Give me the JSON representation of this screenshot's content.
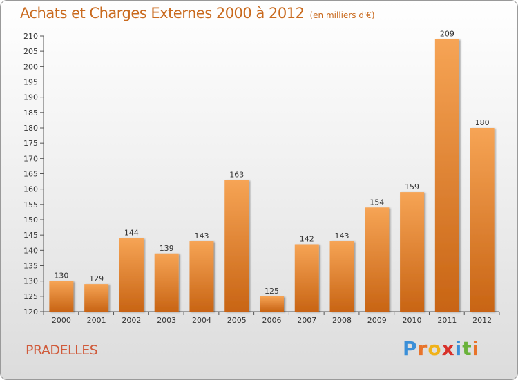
{
  "header": {
    "title": "Achats et Charges Externes 2000 à 2012",
    "unit": "(en milliers d'€)"
  },
  "footer": {
    "commune": "PRADELLES",
    "logo_letters": [
      "P",
      "r",
      "o",
      "x",
      "i",
      "t",
      "i"
    ],
    "logo_colors": [
      "#3a8fd8",
      "#e8732a",
      "#f0b21a",
      "#d8312a",
      "#3a8fd8",
      "#6ab23a",
      "#e8732a"
    ]
  },
  "colors": {
    "bar_top": "#f6a455",
    "bar_bottom": "#c86414",
    "title": "#c96a1e",
    "commune": "#d05a3a"
  },
  "chart_data": {
    "type": "bar",
    "title": "Achats et Charges Externes 2000 à 2012",
    "subtitle": "(en milliers d'€)",
    "categories": [
      "2000",
      "2001",
      "2002",
      "2003",
      "2004",
      "2005",
      "2006",
      "2007",
      "2008",
      "2009",
      "2010",
      "2011",
      "2012"
    ],
    "values": [
      130,
      129,
      144,
      139,
      143,
      163,
      125,
      142,
      143,
      154,
      159,
      209,
      180
    ],
    "ylim": [
      120,
      210
    ],
    "yticks": [
      120,
      125,
      130,
      135,
      140,
      145,
      150,
      155,
      160,
      165,
      170,
      175,
      180,
      185,
      190,
      195,
      200,
      205,
      210
    ],
    "grid": false,
    "legend": "none",
    "data_labels": true
  }
}
